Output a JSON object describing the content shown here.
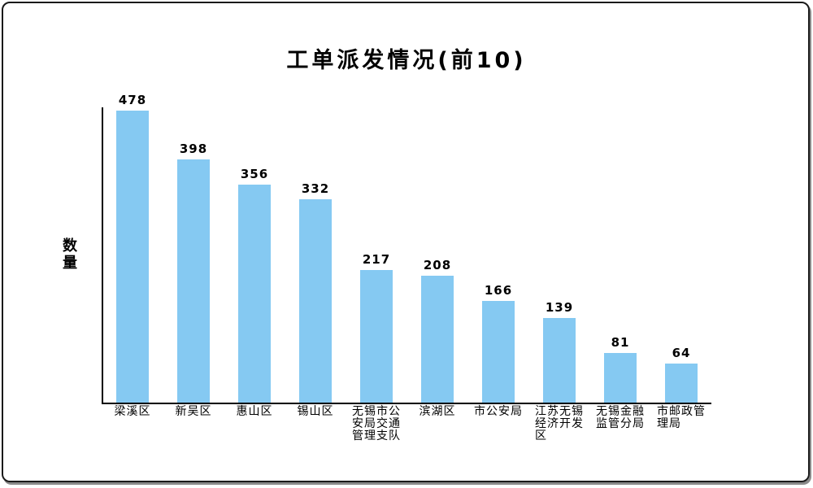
{
  "chart_data": {
    "type": "bar",
    "title": "工单派发情况(前10)",
    "xlabel": "",
    "ylabel": "数量",
    "categories": [
      "梁溪区",
      "新吴区",
      "惠山区",
      "锡山区",
      "无锡市公安局交通管理支队",
      "滨湖区",
      "市公安局",
      "江苏无锡经济开发区",
      "无锡金融监管分局",
      "市邮政管理局"
    ],
    "category_lines": [
      [
        "梁溪区"
      ],
      [
        "新吴区"
      ],
      [
        "惠山区"
      ],
      [
        "锡山区"
      ],
      [
        "无锡市公",
        "安局交通",
        "管理支队"
      ],
      [
        "滨湖区"
      ],
      [
        "市公安局"
      ],
      [
        "江苏无锡",
        "经济开发",
        "区"
      ],
      [
        "无锡金融",
        "监管分局"
      ],
      [
        "市邮政管",
        "理局"
      ]
    ],
    "values": [
      478,
      398,
      356,
      332,
      217,
      208,
      166,
      139,
      81,
      64
    ],
    "value_labels_shown": true,
    "ylim": [
      0,
      483
    ],
    "grid": false,
    "legend_position": "none",
    "bar_color": "#85C9F2",
    "axis_color": "#000000",
    "text_color": "#000000",
    "frame_border_color": "#1a1a1a",
    "background_color": "#ffffff"
  }
}
